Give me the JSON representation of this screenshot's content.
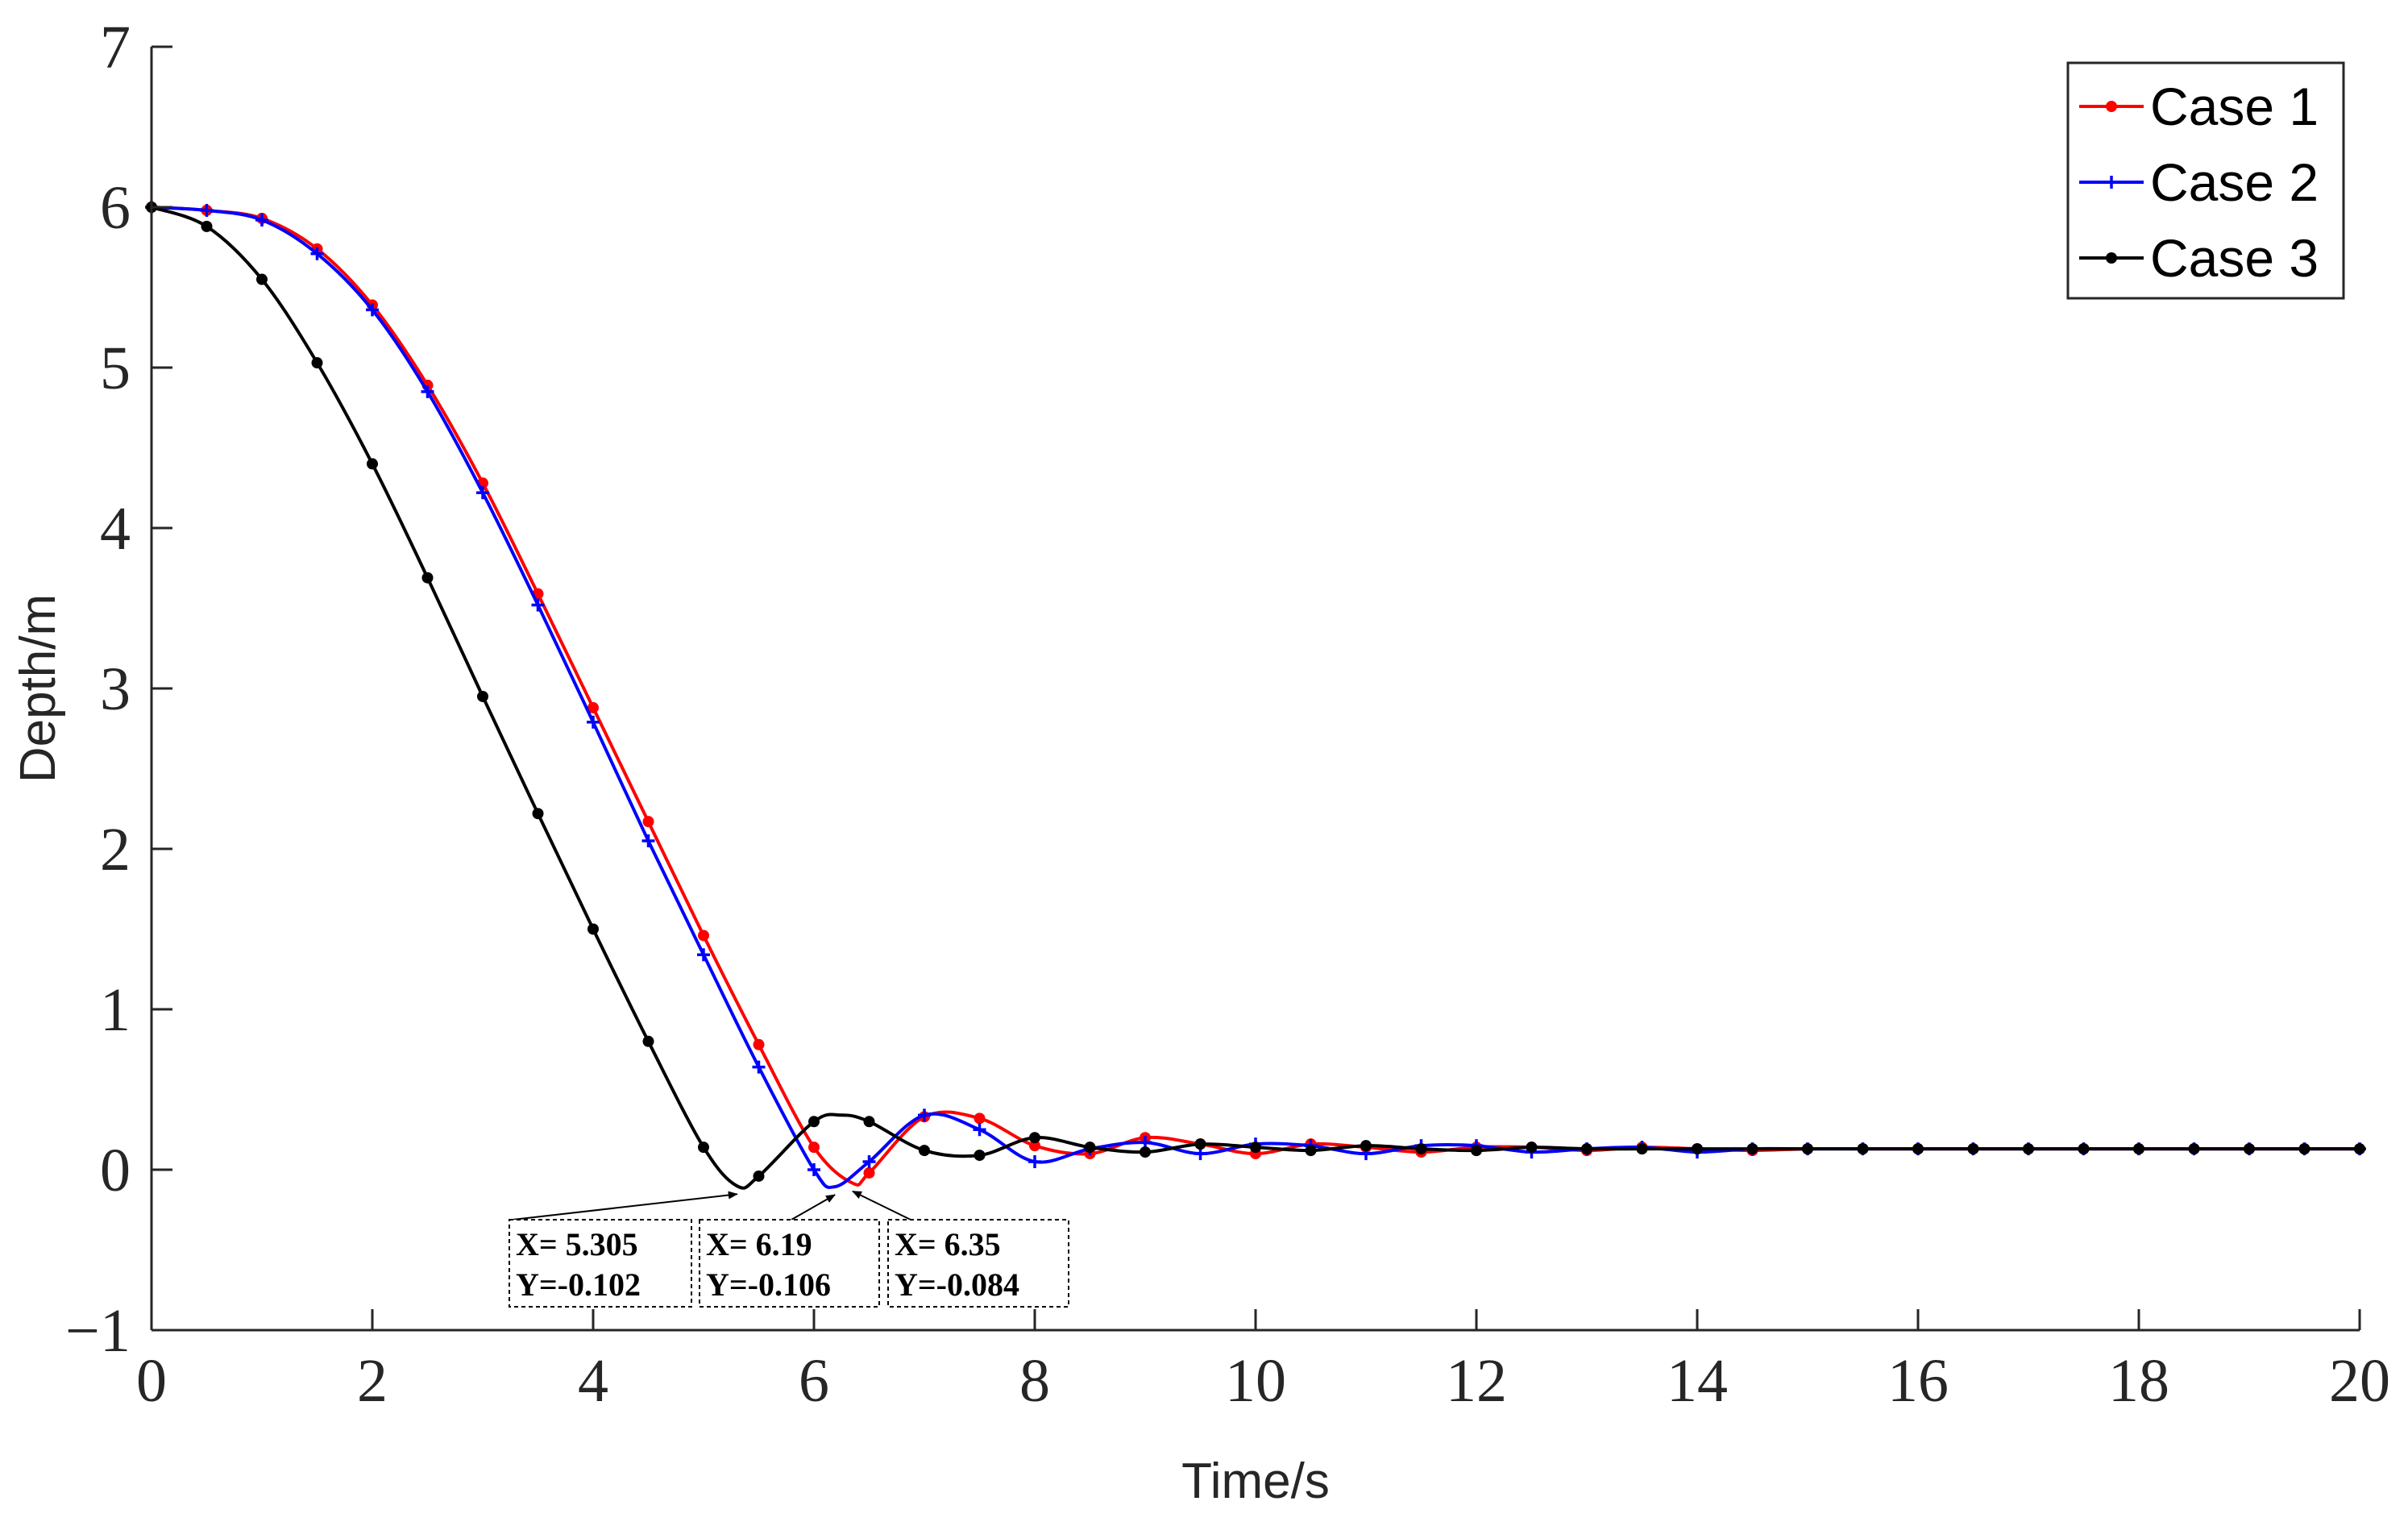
{
  "chart_data": {
    "type": "line",
    "title": "",
    "xlabel": "Time/s",
    "ylabel": "Depth/m",
    "xlim": [
      0,
      20
    ],
    "ylim": [
      -1,
      7
    ],
    "xticks": [
      0,
      2,
      4,
      6,
      8,
      10,
      12,
      14,
      16,
      18,
      20
    ],
    "yticks": [
      -1,
      0,
      1,
      2,
      3,
      4,
      5,
      6,
      7
    ],
    "xtick_labels": [
      "0",
      "2",
      "4",
      "6",
      "8",
      "10",
      "12",
      "14",
      "16",
      "18",
      "20"
    ],
    "ytick_labels": [
      "−1",
      "0",
      "1",
      "2",
      "3",
      "4",
      "5",
      "6",
      "7"
    ],
    "grid": false,
    "legend_position": "top-right",
    "series": [
      {
        "name": "Case 1",
        "color": "#ff0000",
        "marker": "dot",
        "x": [
          0,
          0.5,
          1,
          1.5,
          2,
          2.5,
          3,
          3.5,
          4,
          4.5,
          5,
          5.5,
          6,
          6.35,
          6.5,
          7,
          7.5,
          8,
          8.5,
          9,
          9.5,
          10,
          10.5,
          11,
          11.5,
          12,
          12.5,
          13,
          13.5,
          14,
          14.5,
          15,
          15.5,
          16,
          16.5,
          17,
          17.5,
          18,
          18.5,
          19,
          19.5,
          20
        ],
        "y": [
          6.0,
          5.98,
          5.93,
          5.74,
          5.39,
          4.89,
          4.28,
          3.59,
          2.88,
          2.17,
          1.46,
          0.78,
          0.14,
          -0.084,
          -0.02,
          0.33,
          0.32,
          0.15,
          0.1,
          0.2,
          0.16,
          0.1,
          0.16,
          0.14,
          0.11,
          0.14,
          0.14,
          0.12,
          0.14,
          0.13,
          0.12,
          0.13,
          0.13,
          0.13,
          0.13,
          0.13,
          0.13,
          0.13,
          0.13,
          0.13,
          0.13,
          0.13
        ]
      },
      {
        "name": "Case 2",
        "color": "#0000ff",
        "marker": "plus",
        "x": [
          0,
          0.5,
          1,
          1.5,
          2,
          2.5,
          3,
          3.5,
          4,
          4.5,
          5,
          5.5,
          6,
          6.19,
          6.5,
          7,
          7.5,
          8,
          8.5,
          9,
          9.5,
          10,
          10.5,
          11,
          11.5,
          12,
          12.5,
          13,
          13.5,
          14,
          14.5,
          15,
          15.5,
          16,
          16.5,
          17,
          17.5,
          18,
          18.5,
          19,
          19.5,
          20
        ],
        "y": [
          6.0,
          5.98,
          5.92,
          5.71,
          5.36,
          4.85,
          4.22,
          3.52,
          2.79,
          2.05,
          1.34,
          0.64,
          0.0,
          -0.106,
          0.05,
          0.34,
          0.25,
          0.05,
          0.13,
          0.17,
          0.1,
          0.16,
          0.15,
          0.1,
          0.15,
          0.15,
          0.11,
          0.13,
          0.14,
          0.11,
          0.13,
          0.13,
          0.13,
          0.13,
          0.13,
          0.13,
          0.13,
          0.13,
          0.13,
          0.13,
          0.13,
          0.13
        ]
      },
      {
        "name": "Case 3",
        "color": "#000000",
        "marker": "dot",
        "x": [
          0,
          0.5,
          1,
          1.5,
          2,
          2.5,
          3,
          3.5,
          4,
          4.5,
          5,
          5.305,
          5.5,
          6,
          6.25,
          6.5,
          7,
          7.5,
          8,
          8.5,
          9,
          9.5,
          10,
          10.5,
          11,
          11.5,
          12,
          12.5,
          13,
          13.5,
          14,
          14.5,
          15,
          15.5,
          16,
          16.5,
          17,
          17.5,
          18,
          18.5,
          19,
          19.5,
          20
        ],
        "y": [
          6.0,
          5.88,
          5.55,
          5.03,
          4.4,
          3.69,
          2.95,
          2.22,
          1.5,
          0.8,
          0.14,
          -0.102,
          -0.04,
          0.3,
          0.34,
          0.3,
          0.12,
          0.09,
          0.2,
          0.14,
          0.11,
          0.16,
          0.14,
          0.12,
          0.15,
          0.13,
          0.12,
          0.14,
          0.13,
          0.13,
          0.13,
          0.13,
          0.13,
          0.13,
          0.13,
          0.13,
          0.13,
          0.13,
          0.13,
          0.13,
          0.13,
          0.13,
          0.13
        ]
      }
    ],
    "annotations": [
      {
        "name": "min-case3",
        "x": 5.305,
        "y": -0.102,
        "line1": "X= 5.305",
        "line2": "Y=-0.102"
      },
      {
        "name": "min-case2",
        "x": 6.19,
        "y": -0.106,
        "line1": "X= 6.19",
        "line2": "Y=-0.106"
      },
      {
        "name": "min-case1",
        "x": 6.35,
        "y": -0.084,
        "line1": "X= 6.35",
        "line2": "Y=-0.084"
      }
    ]
  }
}
